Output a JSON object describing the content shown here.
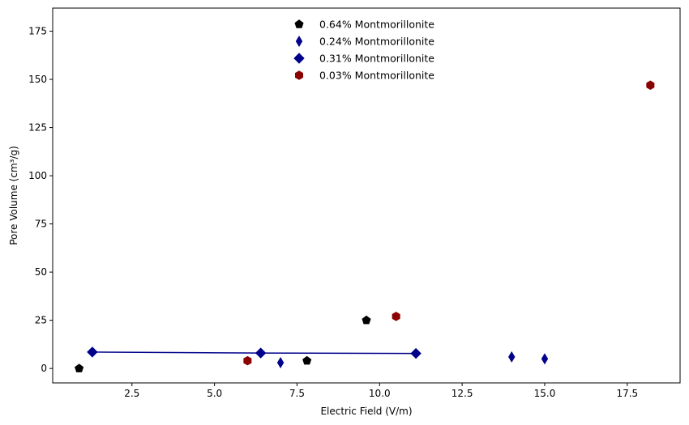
{
  "chart_data": {
    "type": "scatter",
    "xlabel": "Electric Field (V/m)",
    "ylabel": "Pore Volume (cm³/g)",
    "xlim": [
      0.1,
      19.1
    ],
    "ylim": [
      -7.5,
      187
    ],
    "xticks": [
      2.5,
      5.0,
      7.5,
      10.0,
      12.5,
      15.0,
      17.5
    ],
    "xtick_labels": [
      "2.5",
      "5.0",
      "7.5",
      "10.0",
      "12.5",
      "15.0",
      "17.5"
    ],
    "yticks": [
      0,
      25,
      50,
      75,
      100,
      125,
      150,
      175
    ],
    "ytick_labels": [
      "0",
      "25",
      "50",
      "75",
      "100",
      "125",
      "150",
      "175"
    ],
    "grid": false,
    "legend_position": "top-center",
    "series": [
      {
        "name": "0.64% Montmorillonite",
        "marker": "pentagon",
        "color": "#000000",
        "line": false,
        "points": [
          [
            0.9,
            0.0
          ],
          [
            7.8,
            4.0
          ],
          [
            9.6,
            25.0
          ]
        ]
      },
      {
        "name": "0.24% Montmorillonite",
        "marker": "thin-diamond",
        "color": "#00008b",
        "line": false,
        "points": [
          [
            7.0,
            3.0
          ],
          [
            14.0,
            6.0
          ],
          [
            15.0,
            5.0
          ]
        ]
      },
      {
        "name": "0.31% Montmorillonite",
        "marker": "diamond",
        "color": "#00008b",
        "line": true,
        "points": [
          [
            1.3,
            8.5
          ],
          [
            6.4,
            8.0
          ],
          [
            11.1,
            7.8
          ]
        ]
      },
      {
        "name": "0.03% Montmorillonite",
        "marker": "hexagon",
        "color": "#8b0000",
        "line": false,
        "points": [
          [
            6.0,
            4.0
          ],
          [
            10.5,
            27.0
          ],
          [
            18.2,
            147.0
          ]
        ]
      }
    ]
  }
}
